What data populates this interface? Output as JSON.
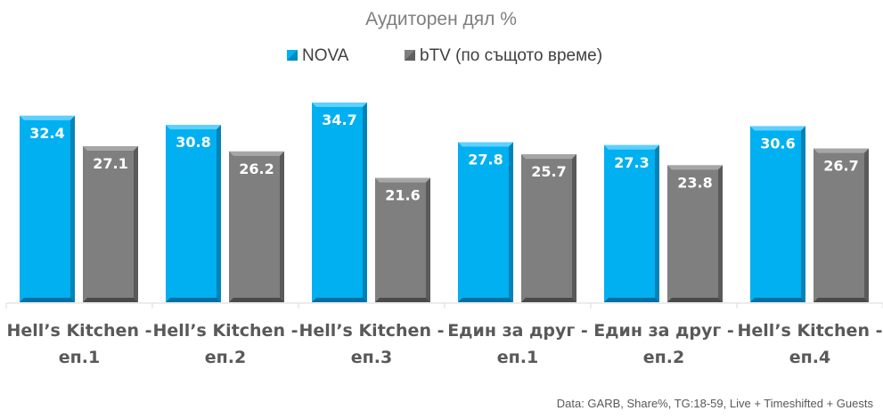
{
  "chart_data": {
    "type": "bar",
    "title": "Аудиторен дял %",
    "categories": [
      [
        "Hell’s Kitchen -",
        "еп.1"
      ],
      [
        "Hell’s Kitchen -",
        "еп.2"
      ],
      [
        "Hell’s Kitchen -",
        "еп.3"
      ],
      [
        "Един за друг -",
        "еп.1"
      ],
      [
        "Един за друг -",
        "еп.2"
      ],
      [
        "Hell’s Kitchen -",
        "еп.4"
      ]
    ],
    "series": [
      {
        "name": "NOVA",
        "color": "#00b0f0",
        "values": [
          32.4,
          30.8,
          34.7,
          27.8,
          27.3,
          30.6
        ]
      },
      {
        "name": "bTV (по същото време)",
        "color": "#7f7f7f",
        "values": [
          27.1,
          26.2,
          21.6,
          25.7,
          23.8,
          26.7
        ]
      }
    ],
    "ylim": [
      0,
      35
    ],
    "grid": false,
    "legend_position": "top",
    "data_labels": true,
    "source_note": "Data: GARB, Share%, TG:18-59, Live + Timeshifted + Guests"
  }
}
